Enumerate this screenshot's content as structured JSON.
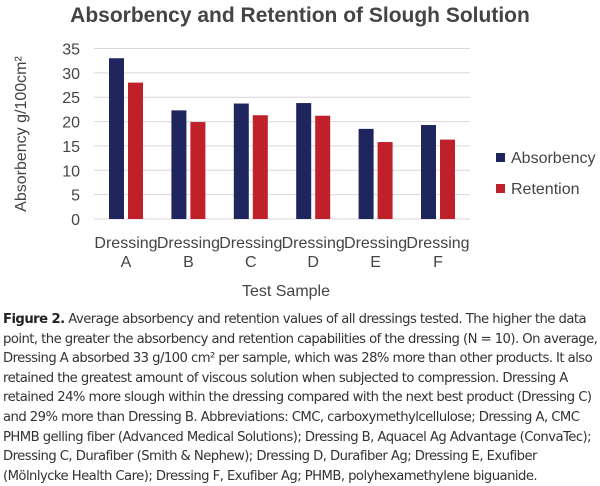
{
  "chart_data": {
    "type": "bar",
    "title": "Absorbency and Retention of Slough Solution",
    "xlabel": "Test Sample",
    "ylabel": "Absorbency g/100cm²",
    "ylim": [
      0,
      35
    ],
    "yticks": [
      0,
      5,
      10,
      15,
      20,
      25,
      30,
      35
    ],
    "grid": true,
    "legend_position": "right",
    "categories": [
      [
        "Dressing",
        "A"
      ],
      [
        "Dressing",
        "B"
      ],
      [
        "Dressing",
        "C"
      ],
      [
        "Dressing",
        "D"
      ],
      [
        "Dressing",
        "E"
      ],
      [
        "Dressing",
        "F"
      ]
    ],
    "series": [
      {
        "name": "Absorbency",
        "color": "#1f265e",
        "values": [
          33.0,
          22.3,
          23.7,
          23.8,
          18.5,
          19.3
        ]
      },
      {
        "name": "Retention",
        "color": "#c0202a",
        "values": [
          28.0,
          19.9,
          21.3,
          21.2,
          15.8,
          16.3
        ]
      }
    ]
  },
  "caption": {
    "label": "Figure 2.",
    "text": " Average absorbency and retention values of all dressings tested. The higher the data point, the greater the absorbency and retention capabilities of the dressing (N = 10). On average, Dressing A absorbed 33 g/100 cm² per sample, which was 28% more than other products. It also retained the greatest amount of viscous solution when subjected to compression. Dressing A retained 24% more slough within the dressing compared with the next best product (Dressing C) and 29% more than Dressing B. Abbreviations: CMC, carboxymethylcellulose; Dressing A, CMC PHMB gelling fiber (Advanced Medical Solutions); Dressing B, Aquacel Ag Advantage (ConvaTec); Dressing C, Durafiber (Smith & Nephew); Dressing D, Durafiber Ag; Dressing E, Exufiber (Mölnlycke Health Care); Dressing F, Exufiber Ag; PHMB, polyhexamethylene biguanide."
  }
}
